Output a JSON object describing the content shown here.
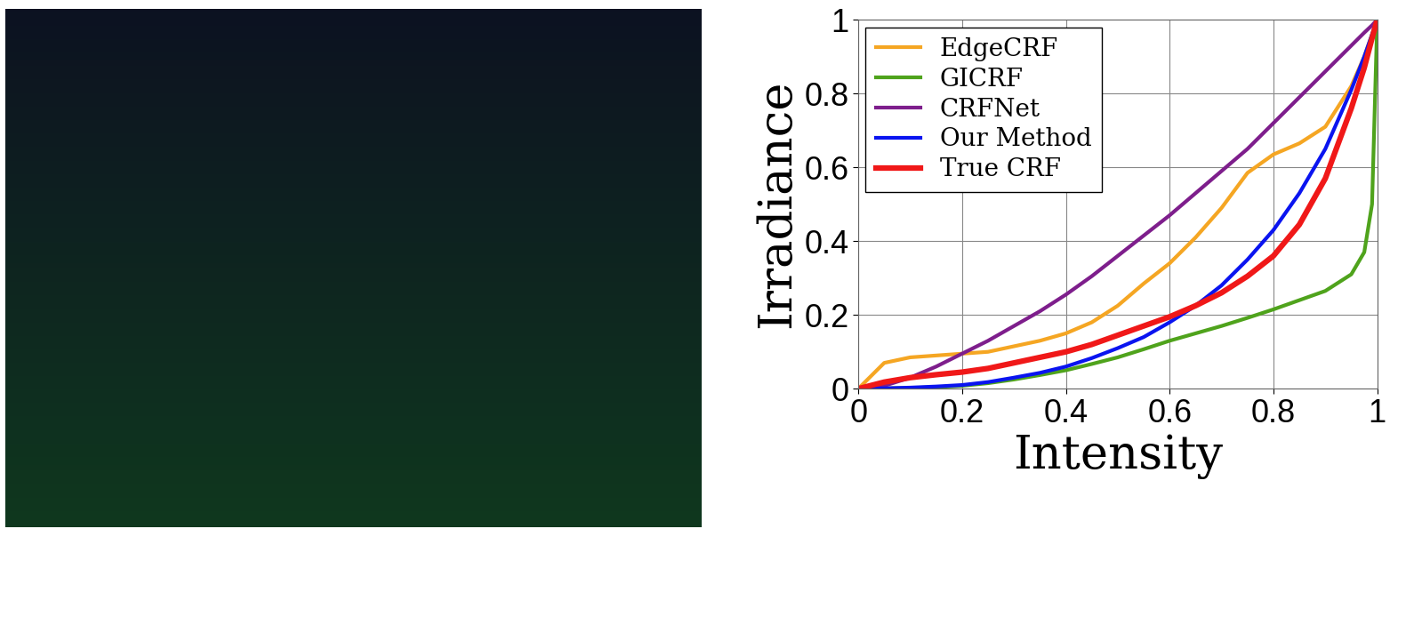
{
  "chart_data": {
    "type": "line",
    "x_label": "Intensity",
    "y_label": "Irradiance",
    "x": [
      0,
      0.05,
      0.1,
      0.15,
      0.2,
      0.25,
      0.3,
      0.35,
      0.4,
      0.45,
      0.5,
      0.55,
      0.6,
      0.65,
      0.7,
      0.75,
      0.8,
      0.85,
      0.9,
      0.95,
      0.975,
      0.99,
      1
    ],
    "series": [
      {
        "name": "EdgeCRF",
        "color": "#f5a623",
        "values": [
          0,
          0.07,
          0.085,
          0.09,
          0.095,
          0.1,
          0.115,
          0.13,
          0.15,
          0.18,
          0.225,
          0.285,
          0.34,
          0.41,
          0.49,
          0.585,
          0.635,
          0.665,
          0.71,
          0.82,
          0.9,
          0.96,
          1
        ]
      },
      {
        "name": "GICRF",
        "color": "#4fa31c",
        "values": [
          0,
          0.001,
          0.002,
          0.004,
          0.008,
          0.015,
          0.025,
          0.037,
          0.05,
          0.067,
          0.085,
          0.107,
          0.13,
          0.15,
          0.17,
          0.192,
          0.215,
          0.24,
          0.265,
          0.31,
          0.37,
          0.5,
          1
        ]
      },
      {
        "name": "CRFNet",
        "color": "#7e1e8c",
        "values": [
          0,
          0.008,
          0.03,
          0.06,
          0.095,
          0.13,
          0.17,
          0.21,
          0.255,
          0.305,
          0.36,
          0.415,
          0.47,
          0.53,
          0.59,
          0.65,
          0.72,
          0.79,
          0.86,
          0.93,
          0.965,
          0.985,
          1
        ]
      },
      {
        "name": "Our Method",
        "color": "#0a14f0",
        "values": [
          0,
          0.001,
          0.003,
          0.006,
          0.01,
          0.018,
          0.03,
          0.043,
          0.06,
          0.083,
          0.11,
          0.14,
          0.18,
          0.225,
          0.28,
          0.35,
          0.43,
          0.53,
          0.65,
          0.81,
          0.9,
          0.96,
          1
        ]
      },
      {
        "name": "True CRF",
        "color": "#f01818",
        "values": [
          0,
          0.018,
          0.03,
          0.038,
          0.045,
          0.055,
          0.07,
          0.085,
          0.1,
          0.12,
          0.145,
          0.17,
          0.195,
          0.225,
          0.26,
          0.305,
          0.36,
          0.445,
          0.57,
          0.76,
          0.87,
          0.95,
          1
        ]
      }
    ],
    "xlim": [
      0,
      1
    ],
    "ylim": [
      0,
      1
    ],
    "xticks": [
      0,
      0.2,
      0.4,
      0.6,
      0.8,
      1
    ],
    "yticks": [
      0,
      0.2,
      0.4,
      0.6,
      0.8,
      1
    ],
    "grid": true,
    "legend": "upper left"
  }
}
